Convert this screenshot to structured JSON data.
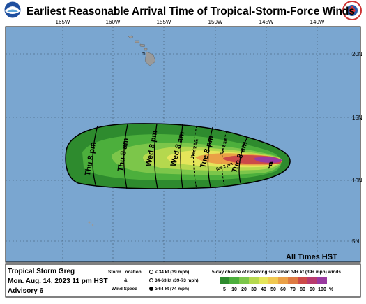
{
  "header": {
    "title": "Earliest Reasonable Arrival Time of Tropical-Storm-Force Winds"
  },
  "map": {
    "longitudes": [
      "165W",
      "160W",
      "155W",
      "150W",
      "145W",
      "140W"
    ],
    "latitudes": [
      "20N",
      "15N",
      "10N",
      "5N"
    ],
    "region_label": "HI",
    "contours": [
      "Thu 8 pm",
      "Thu 8 am",
      "Wed 8 pm",
      "Wed 8 am",
      "Tue 8 pm",
      "Tue 8 am"
    ],
    "minor_contours": [
      "Wed 2 am",
      "Tue 2 am",
      "Tue 2 pm"
    ],
    "time_note": "All Times HST"
  },
  "footer": {
    "storm": "Tropical Storm Greg",
    "date": "Mon. Aug. 14, 2023  11 pm HST",
    "advisory": "Advisory 6",
    "legend": {
      "location": "Storm Location",
      "and": "&",
      "speed": "Wind Speed",
      "weak": "< 34 kt (39 mph)",
      "medium": "34-63 kt (39-73 mph)",
      "strong": "≥ 64 kt (74 mph)"
    },
    "scale": {
      "title": "5-day chance of receiving sustained 34+ kt (39+ mph) winds",
      "labels": [
        5,
        10,
        20,
        30,
        40,
        50,
        60,
        70,
        80,
        90,
        100
      ],
      "unit": "%",
      "colors": [
        "#2e8b2e",
        "#4caf3c",
        "#7cc64a",
        "#b5d84e",
        "#e5e55a",
        "#f0c850",
        "#eaa046",
        "#de7a42",
        "#cc4a48",
        "#b83a6e",
        "#9a3aa0"
      ]
    }
  }
}
